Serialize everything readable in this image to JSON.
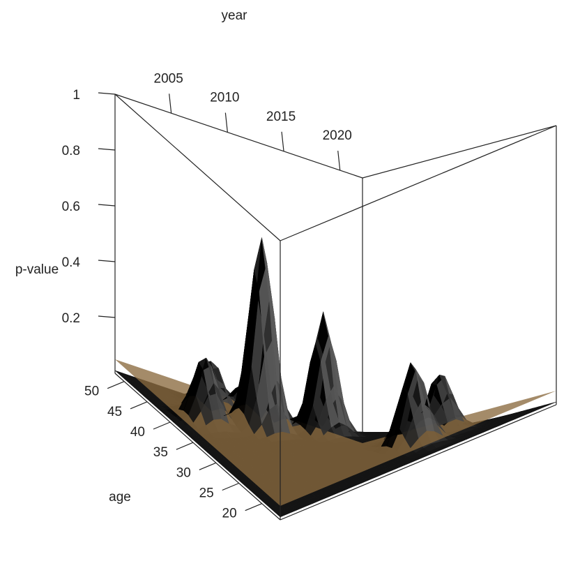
{
  "chart_data": {
    "type": "surface3d",
    "title": "",
    "xlabel": "year",
    "ylabel": "age",
    "zlabel": "p-value",
    "x_ticks": [
      {
        "value": 2005,
        "label": "2005"
      },
      {
        "value": 2010,
        "label": "2010"
      },
      {
        "value": 2015,
        "label": "2015"
      },
      {
        "value": 2020,
        "label": "2020"
      }
    ],
    "y_ticks": [
      {
        "value": 50,
        "label": "50"
      },
      {
        "value": 45,
        "label": "45"
      },
      {
        "value": 40,
        "label": "40"
      },
      {
        "value": 35,
        "label": "35"
      },
      {
        "value": 30,
        "label": "30"
      },
      {
        "value": 25,
        "label": "25"
      },
      {
        "value": 20,
        "label": "20"
      }
    ],
    "z_ticks": [
      {
        "value": 1,
        "label": "1"
      },
      {
        "value": 0.8,
        "label": "0.8"
      },
      {
        "value": 0.6,
        "label": "0.6"
      },
      {
        "value": 0.4,
        "label": "0.4"
      },
      {
        "value": 0.2,
        "label": "0.2"
      }
    ],
    "xlim": [
      2000,
      2022
    ],
    "ylim": [
      16,
      52
    ],
    "zlim": [
      0,
      1
    ],
    "reference_plane": {
      "z": 0.05,
      "color": "#8a6a3f"
    },
    "surface_color": "#111111",
    "peaks": [
      {
        "year": 2007,
        "age": 38,
        "p": 0.7
      },
      {
        "year": 2011,
        "age": 35,
        "p": 0.44
      },
      {
        "year": 2003,
        "age": 40,
        "p": 0.24
      },
      {
        "year": 2013,
        "age": 22,
        "p": 0.3
      },
      {
        "year": 2006,
        "age": 46,
        "p": 0.18
      },
      {
        "year": 2016,
        "age": 24,
        "p": 0.22
      },
      {
        "year": 2009,
        "age": 46,
        "p": 0.12
      }
    ]
  }
}
